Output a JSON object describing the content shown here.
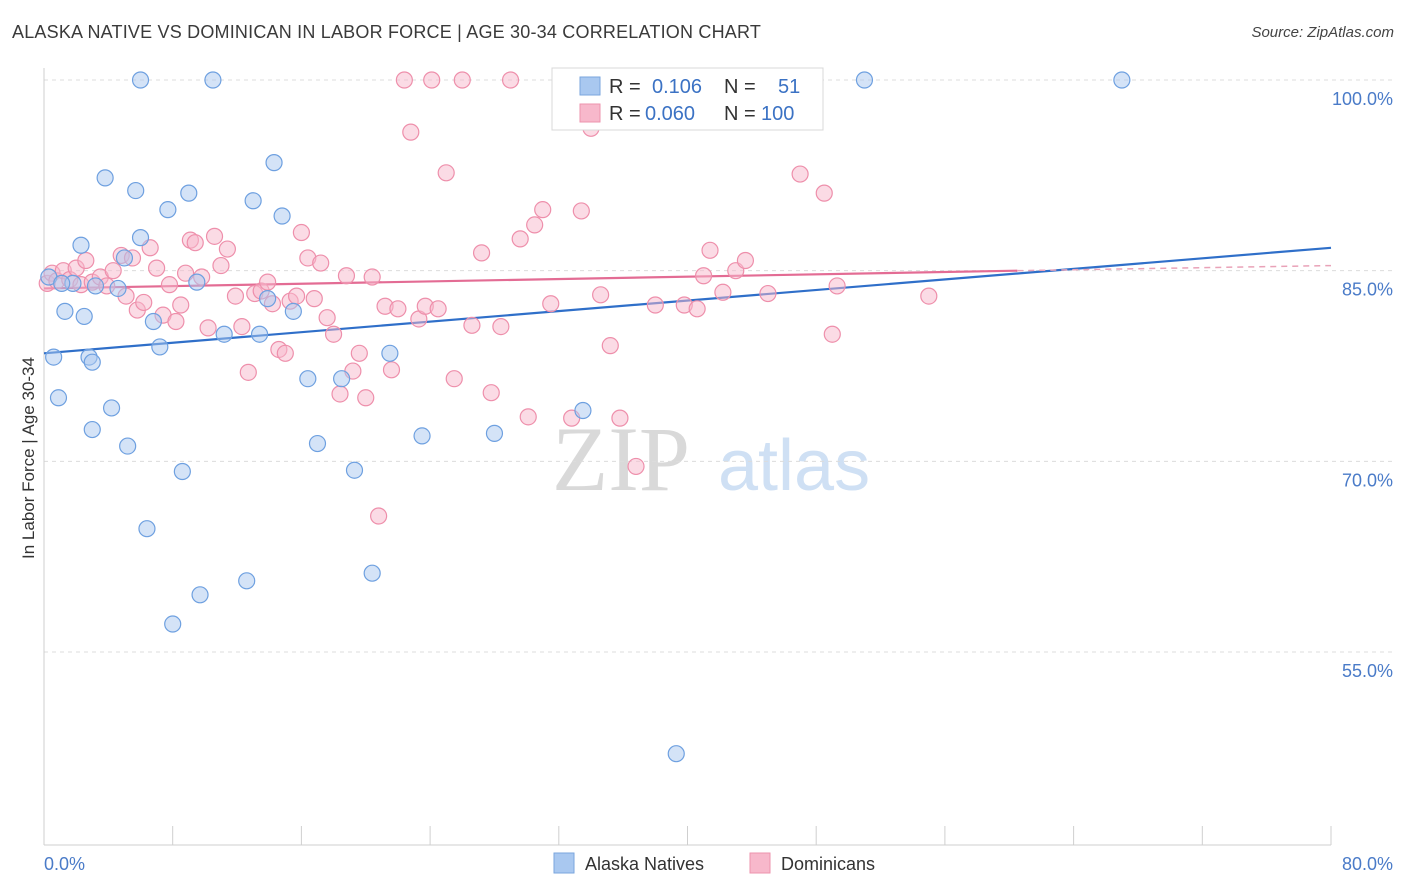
{
  "header": {
    "title": "ALASKA NATIVE VS DOMINICAN IN LABOR FORCE | AGE 30-34 CORRELATION CHART",
    "source": "Source: ZipAtlas.com"
  },
  "watermark": {
    "zip": "ZIP",
    "atlas": "atlas"
  },
  "legend": {
    "r_label": "R =",
    "n_label": "N =",
    "rows": [
      {
        "r": "0.106",
        "n": "51",
        "color": "#a9c8f0"
      },
      {
        "r": "0.060",
        "n": "100",
        "color": "#f7b8cb"
      }
    ]
  },
  "bottom_legend": [
    {
      "label": "Alaska Natives",
      "color": "#a9c8f0"
    },
    {
      "label": "Dominicans",
      "color": "#f7b8cb"
    }
  ],
  "chart_data": {
    "type": "scatter",
    "xlabel": "",
    "ylabel": "In Labor Force | Age 30-34",
    "xlim": [
      0,
      80
    ],
    "ylim": [
      40,
      100
    ],
    "x_tick_labels": [
      {
        "value": 0,
        "label": "0.0%"
      },
      {
        "value": 80,
        "label": "80.0%"
      }
    ],
    "y_tick_labels": [
      {
        "value": 100,
        "label": "100.0%"
      },
      {
        "value": 85,
        "label": "85.0%"
      },
      {
        "value": 70,
        "label": "70.0%"
      },
      {
        "value": 55,
        "label": "55.0%"
      }
    ],
    "grid": true,
    "series": [
      {
        "name": "Alaska Natives",
        "color": "#6ea0e0",
        "fill": "#a9c8f0",
        "trend": {
          "x": [
            0,
            80
          ],
          "y": [
            78.5,
            86.8
          ]
        },
        "points": [
          [
            0.3,
            84.5
          ],
          [
            0.6,
            78.2
          ],
          [
            0.9,
            75.0
          ],
          [
            1.3,
            81.8
          ],
          [
            1.8,
            84.0
          ],
          [
            2.3,
            87.0
          ],
          [
            2.5,
            81.4
          ],
          [
            2.8,
            78.2
          ],
          [
            3.0,
            77.8
          ],
          [
            3.2,
            83.8
          ],
          [
            3.8,
            92.3
          ],
          [
            4.2,
            74.2
          ],
          [
            4.6,
            83.6
          ],
          [
            5.0,
            86.0
          ],
          [
            5.2,
            71.2
          ],
          [
            5.7,
            91.3
          ],
          [
            6.0,
            87.6
          ],
          [
            6.4,
            64.7
          ],
          [
            6.8,
            81.0
          ],
          [
            7.2,
            79.0
          ],
          [
            7.7,
            89.8
          ],
          [
            8.0,
            57.2
          ],
          [
            8.6,
            69.2
          ],
          [
            9.0,
            91.1
          ],
          [
            9.5,
            84.1
          ],
          [
            9.7,
            59.5
          ],
          [
            10.5,
            100.0
          ],
          [
            11.2,
            80.0
          ],
          [
            12.6,
            60.6
          ],
          [
            13.0,
            90.5
          ],
          [
            13.4,
            80.0
          ],
          [
            13.9,
            82.8
          ],
          [
            14.3,
            93.5
          ],
          [
            14.8,
            89.3
          ],
          [
            15.5,
            81.8
          ],
          [
            16.4,
            76.5
          ],
          [
            17.0,
            71.4
          ],
          [
            18.5,
            76.5
          ],
          [
            19.3,
            69.3
          ],
          [
            20.4,
            61.2
          ],
          [
            21.5,
            78.5
          ],
          [
            23.5,
            72.0
          ],
          [
            28.0,
            72.2
          ],
          [
            33.5,
            74.0
          ],
          [
            39.3,
            47.0
          ],
          [
            41.0,
            100.0
          ],
          [
            51.0,
            100.0
          ],
          [
            67.0,
            100.0
          ],
          [
            6.0,
            100.0
          ],
          [
            3.0,
            72.5
          ],
          [
            1.1,
            84.0
          ]
        ]
      },
      {
        "name": "Dominicans",
        "color": "#ee8fab",
        "fill": "#f7b8cb",
        "trend": {
          "x": [
            0,
            60.5
          ],
          "y": [
            83.6,
            85.0
          ]
        },
        "trend_dashed": {
          "x": [
            60.5,
            80
          ],
          "y": [
            85.0,
            85.4
          ]
        },
        "points": [
          [
            0.2,
            84.0
          ],
          [
            0.5,
            84.8
          ],
          [
            0.8,
            84.2
          ],
          [
            1.2,
            85.0
          ],
          [
            1.6,
            84.3
          ],
          [
            2.0,
            85.2
          ],
          [
            2.3,
            83.9
          ],
          [
            2.6,
            85.8
          ],
          [
            3.0,
            84.1
          ],
          [
            3.5,
            84.5
          ],
          [
            3.9,
            83.8
          ],
          [
            4.3,
            85.0
          ],
          [
            4.8,
            86.2
          ],
          [
            5.1,
            83.0
          ],
          [
            5.5,
            86.0
          ],
          [
            5.8,
            81.9
          ],
          [
            6.2,
            82.5
          ],
          [
            6.6,
            86.8
          ],
          [
            7.0,
            85.2
          ],
          [
            7.4,
            81.5
          ],
          [
            7.8,
            83.9
          ],
          [
            8.2,
            81.0
          ],
          [
            8.5,
            82.3
          ],
          [
            8.8,
            84.8
          ],
          [
            9.1,
            87.4
          ],
          [
            9.4,
            87.2
          ],
          [
            9.8,
            84.5
          ],
          [
            10.2,
            80.5
          ],
          [
            10.6,
            87.7
          ],
          [
            11.0,
            85.4
          ],
          [
            11.4,
            86.7
          ],
          [
            11.9,
            83.0
          ],
          [
            12.3,
            80.6
          ],
          [
            12.7,
            77.0
          ],
          [
            13.1,
            83.2
          ],
          [
            13.5,
            83.4
          ],
          [
            13.9,
            84.1
          ],
          [
            14.2,
            82.4
          ],
          [
            14.6,
            78.8
          ],
          [
            15.0,
            78.5
          ],
          [
            15.3,
            82.6
          ],
          [
            15.7,
            83.0
          ],
          [
            16.0,
            88.0
          ],
          [
            16.4,
            86.0
          ],
          [
            16.8,
            82.8
          ],
          [
            17.2,
            85.6
          ],
          [
            17.6,
            81.3
          ],
          [
            18.0,
            80.0
          ],
          [
            18.4,
            75.3
          ],
          [
            18.8,
            84.6
          ],
          [
            19.2,
            77.1
          ],
          [
            19.6,
            78.5
          ],
          [
            20.0,
            75.0
          ],
          [
            20.4,
            84.5
          ],
          [
            20.8,
            65.7
          ],
          [
            21.2,
            82.2
          ],
          [
            21.6,
            77.2
          ],
          [
            22.0,
            82.0
          ],
          [
            22.4,
            100.0
          ],
          [
            22.8,
            95.9
          ],
          [
            23.3,
            81.2
          ],
          [
            23.7,
            82.2
          ],
          [
            24.1,
            100.0
          ],
          [
            24.5,
            82.0
          ],
          [
            25.0,
            92.7
          ],
          [
            25.5,
            76.5
          ],
          [
            26.0,
            100.0
          ],
          [
            26.6,
            80.7
          ],
          [
            27.2,
            86.4
          ],
          [
            27.8,
            75.4
          ],
          [
            28.4,
            80.6
          ],
          [
            29.0,
            100.0
          ],
          [
            29.6,
            87.5
          ],
          [
            30.1,
            73.5
          ],
          [
            30.5,
            88.6
          ],
          [
            31.0,
            89.8
          ],
          [
            31.5,
            82.4
          ],
          [
            32.2,
            100.0
          ],
          [
            32.8,
            73.4
          ],
          [
            33.4,
            89.7
          ],
          [
            34.0,
            96.2
          ],
          [
            34.6,
            83.1
          ],
          [
            35.2,
            79.1
          ],
          [
            35.8,
            73.4
          ],
          [
            36.8,
            69.6
          ],
          [
            38.0,
            82.3
          ],
          [
            39.0,
            100.0
          ],
          [
            39.8,
            82.3
          ],
          [
            40.6,
            82.0
          ],
          [
            41.4,
            86.6
          ],
          [
            42.2,
            83.3
          ],
          [
            43.0,
            85.0
          ],
          [
            43.6,
            85.8
          ],
          [
            45.0,
            83.2
          ],
          [
            47.0,
            92.6
          ],
          [
            48.5,
            91.1
          ],
          [
            49.0,
            80.0
          ],
          [
            49.3,
            83.8
          ],
          [
            55.0,
            83.0
          ],
          [
            41.0,
            84.6
          ]
        ]
      }
    ]
  }
}
